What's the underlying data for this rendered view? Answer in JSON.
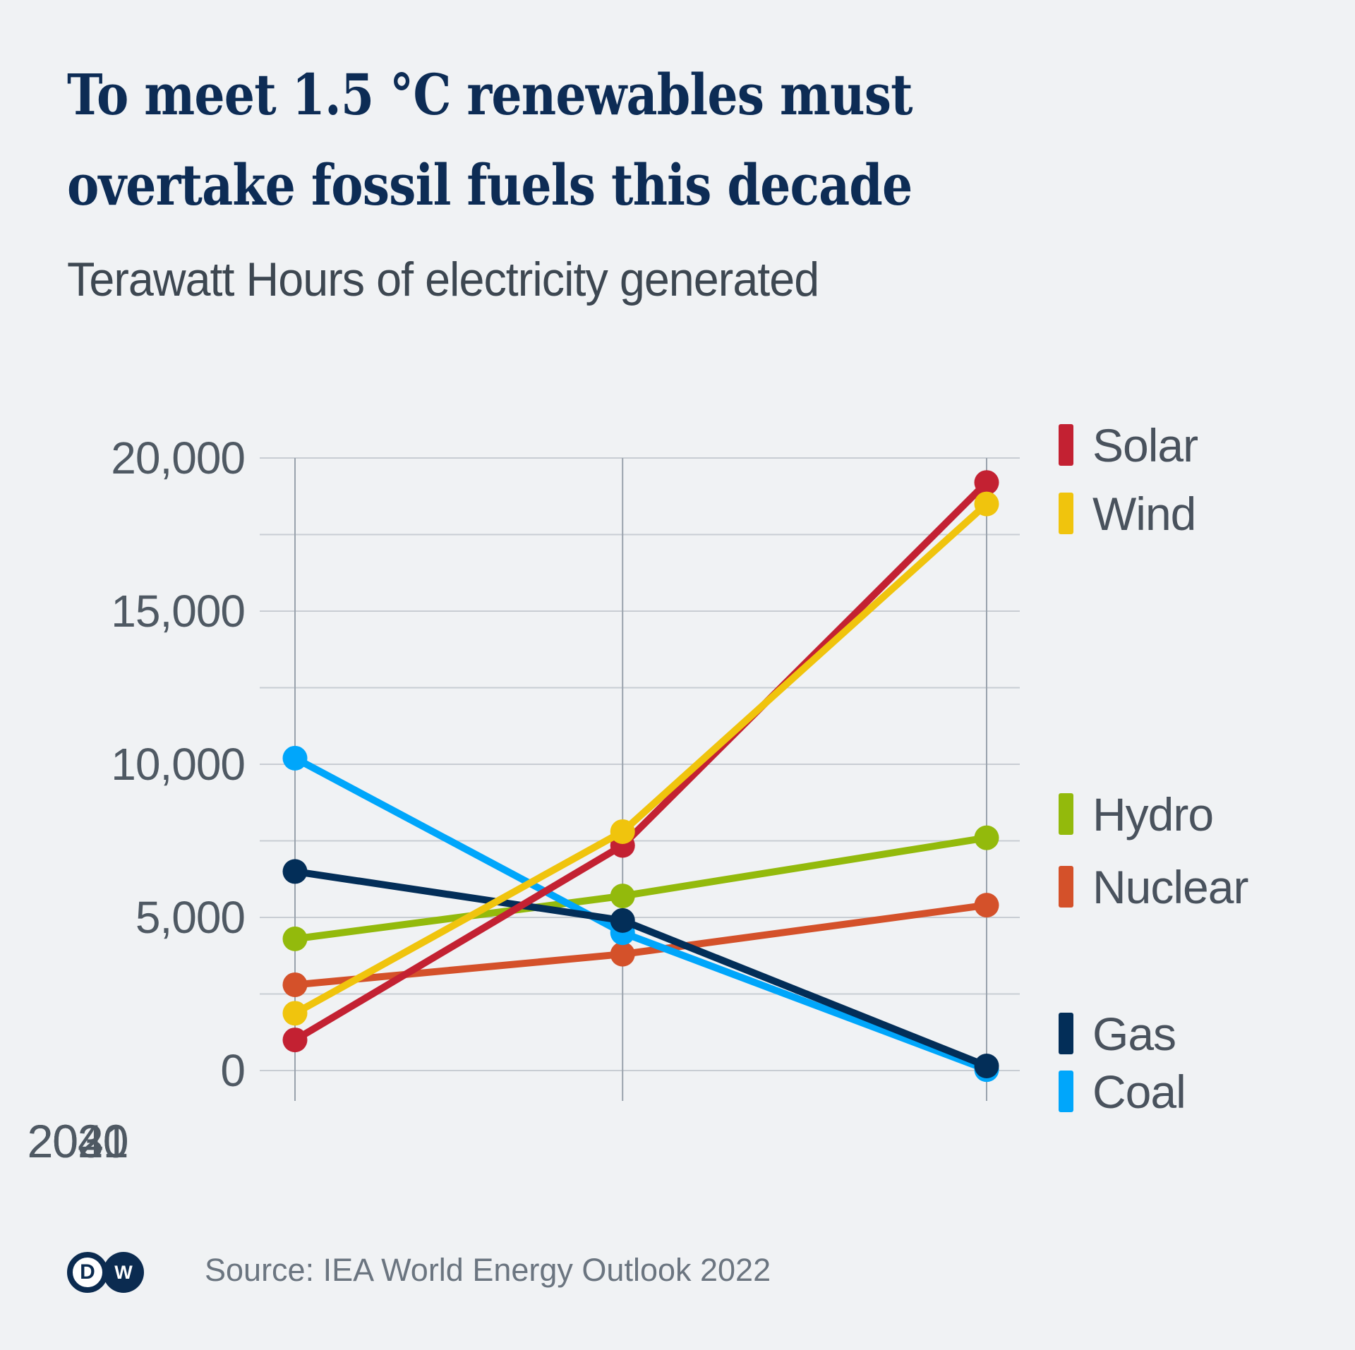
{
  "header": {
    "title_line1": "To meet 1.5 °C renewables must",
    "title_line2": "overtake fossil fuels this decade",
    "subtitle": "Terawatt Hours of electricity generated"
  },
  "axis": {
    "y_tick_labels": [
      "20,000",
      "15,000",
      "10,000",
      "5,000",
      "0"
    ],
    "x_tick_labels": [
      "2021",
      "2030",
      "2040"
    ]
  },
  "palette": {
    "background": "#f0f2f4",
    "title": "#0d2c55",
    "subtitle": "#3d4751",
    "axis_label": "#4f5963",
    "legend_label": "#49525d",
    "source": "#6b7580",
    "grid_h": "#c8cdd3",
    "grid_v": "#99a2ac",
    "logo_navy": "#0b2b50"
  },
  "chart_data": {
    "type": "line",
    "title": "To meet 1.5 °C renewables must overtake fossil fuels this decade",
    "subtitle": "Terawatt Hours of electricity generated",
    "xlabel": "",
    "ylabel": "Terawatt Hours",
    "x": [
      2021,
      2030,
      2040
    ],
    "ylim": [
      0,
      20000
    ],
    "y_gridline_step": 2500,
    "y_label_step": 5000,
    "grid": true,
    "legend_position": "right",
    "series": [
      {
        "name": "Nuclear",
        "color": "#d4512a",
        "values": [
          2800,
          3800,
          5400
        ]
      },
      {
        "name": "Hydro",
        "color": "#93ba0c",
        "values": [
          4300,
          5700,
          7600
        ]
      },
      {
        "name": "Coal",
        "color": "#00a6fb",
        "values": [
          10200,
          4500,
          30
        ]
      },
      {
        "name": "Gas",
        "color": "#032e58",
        "values": [
          6500,
          4900,
          150
        ]
      },
      {
        "name": "Solar",
        "color": "#c32132",
        "values": [
          1000,
          7350,
          19200
        ]
      },
      {
        "name": "Wind",
        "color": "#f0c40d",
        "values": [
          1870,
          7800,
          18500
        ]
      }
    ],
    "legend": [
      {
        "label": "Solar",
        "color": "#c32132"
      },
      {
        "label": "Wind",
        "color": "#f0c40d"
      },
      {
        "label": "Hydro",
        "color": "#93ba0c"
      },
      {
        "label": "Nuclear",
        "color": "#d4512a"
      },
      {
        "label": "Gas",
        "color": "#032e58"
      },
      {
        "label": "Coal",
        "color": "#00a6fb"
      }
    ]
  },
  "footer": {
    "source": "Source: IEA World Energy Outlook 2022",
    "logo_left_letter": "D",
    "logo_right_letter": "W"
  }
}
